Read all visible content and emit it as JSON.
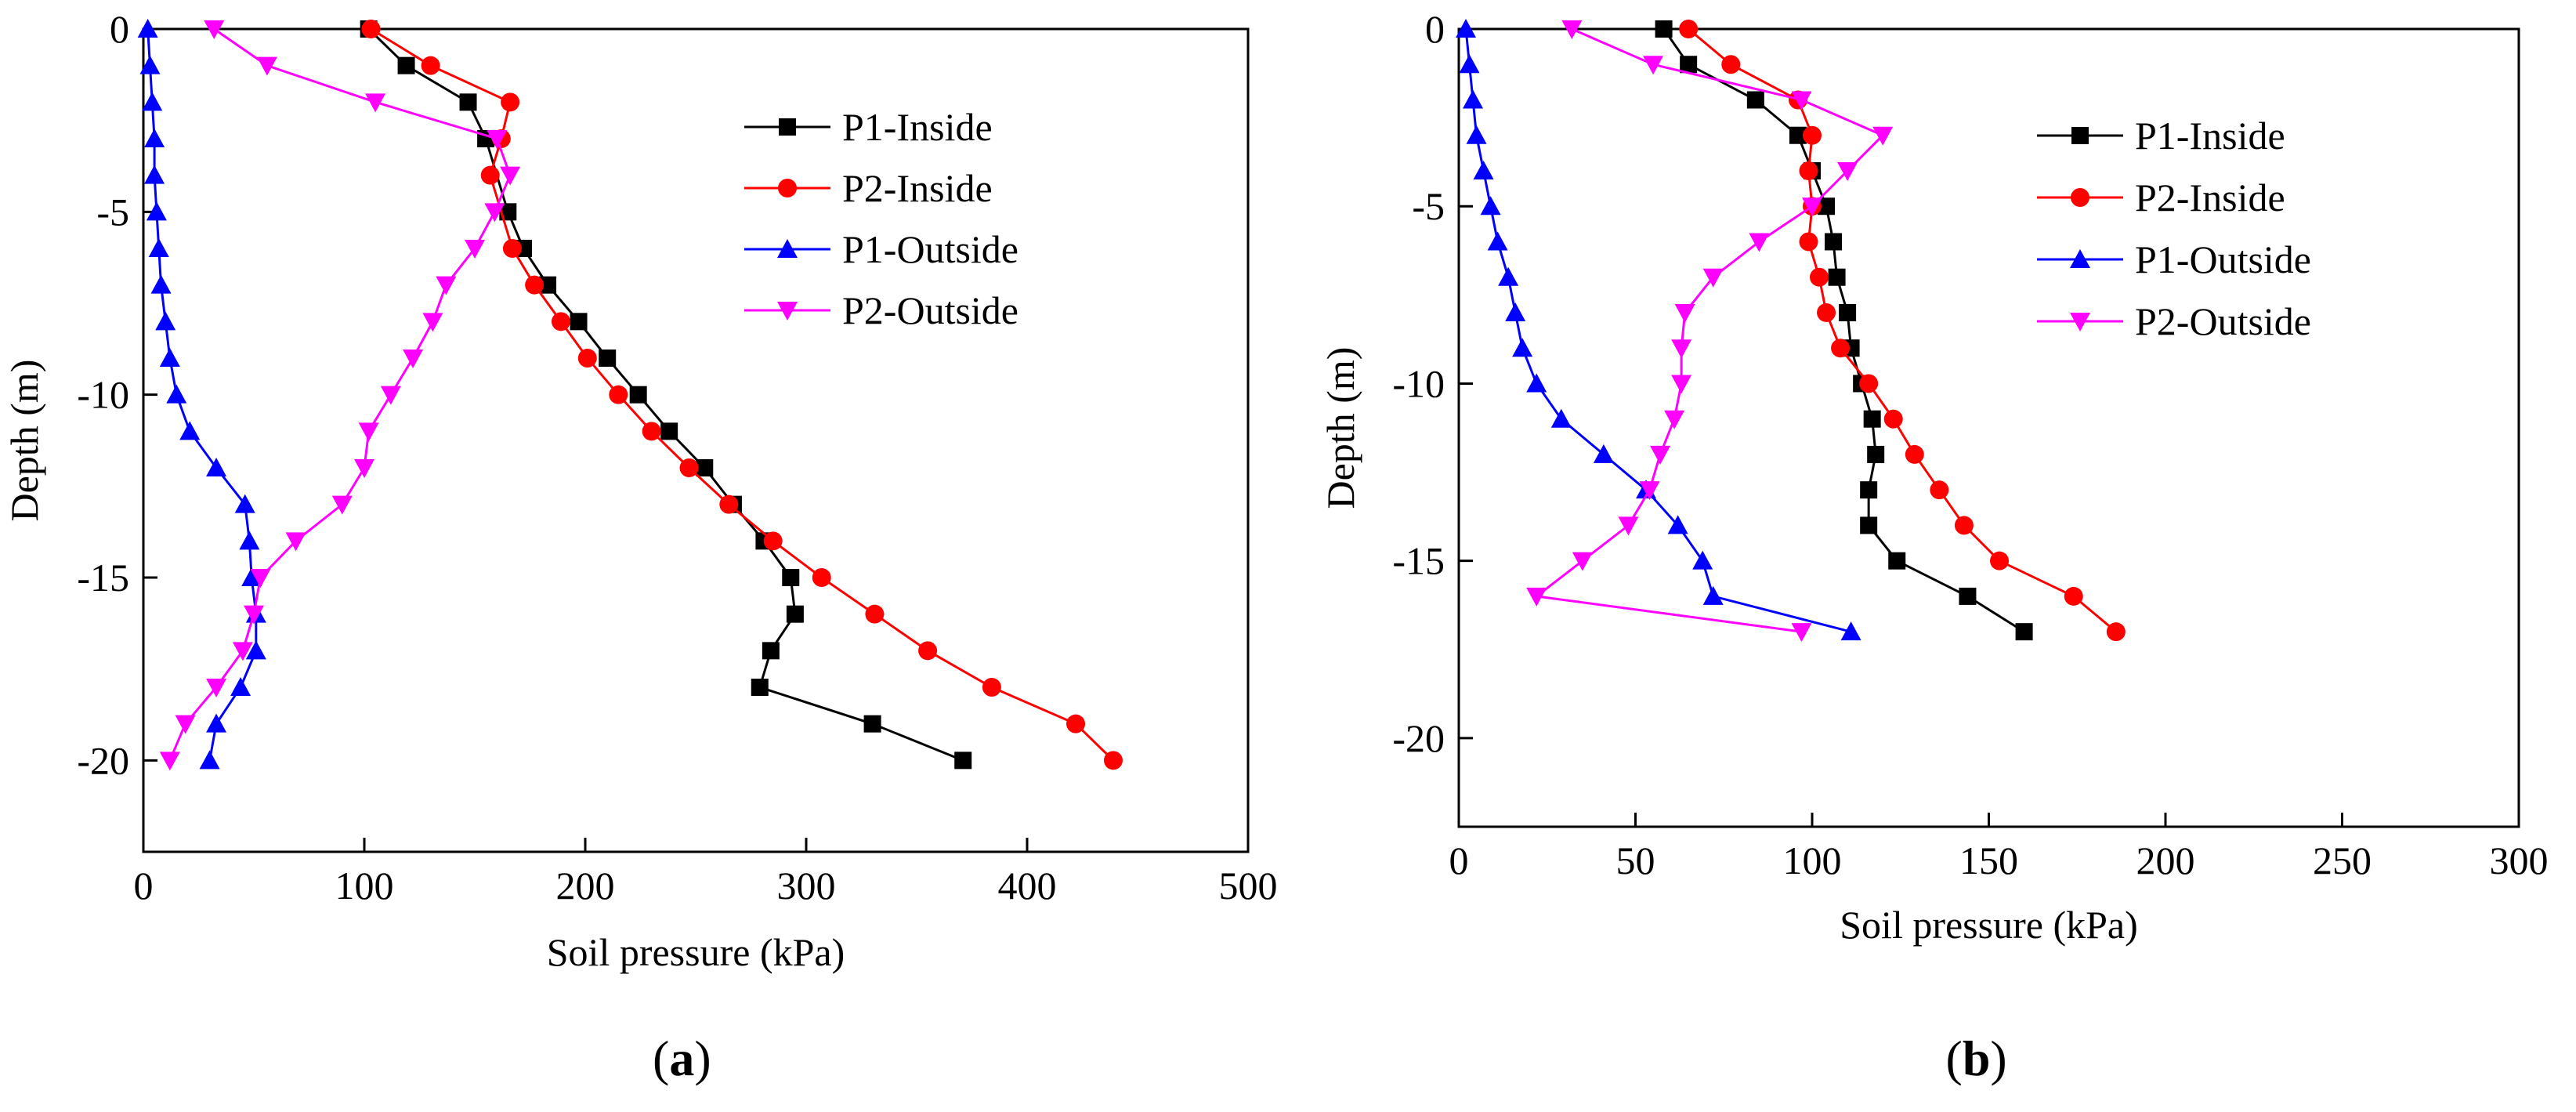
{
  "chart_data": [
    {
      "panel": "(a)",
      "panel_letter": "a",
      "type": "line",
      "title": "",
      "xlabel": "Soil pressure (kPa)",
      "ylabel": "Depth (m)",
      "xlim": [
        0,
        500
      ],
      "ylim": [
        -22.5,
        0
      ],
      "xticks": [
        0,
        100,
        200,
        300,
        400,
        500
      ],
      "yticks": [
        0,
        -5,
        -10,
        -15,
        -20
      ],
      "legend_position": "top-right",
      "series": [
        {
          "name": "P1-Inside",
          "color": "#000000",
          "marker": "square",
          "x": [
            102,
            119,
            147,
            155,
            165,
            172,
            183,
            197,
            210,
            224,
            238,
            254,
            267,
            281,
            293,
            295,
            284,
            279,
            330,
            371
          ],
          "y": [
            0,
            -1,
            -2,
            -3,
            -5,
            -6,
            -7,
            -8,
            -9,
            -10,
            -11,
            -12,
            -13,
            -14,
            -15,
            -16,
            -17,
            -18,
            -19,
            -20
          ]
        },
        {
          "name": "P2-Inside",
          "color": "#ff0000",
          "marker": "circle",
          "x": [
            103,
            130,
            166,
            162,
            157,
            167,
            177,
            189,
            201,
            215,
            230,
            247,
            265,
            285,
            307,
            331,
            355,
            384,
            422,
            439
          ],
          "y": [
            0,
            -1,
            -2,
            -3,
            -4,
            -6,
            -7,
            -8,
            -9,
            -10,
            -11,
            -12,
            -13,
            -14,
            -15,
            -16,
            -17,
            -18,
            -19,
            -20
          ]
        },
        {
          "name": "P1-Outside",
          "color": "#0000ff",
          "marker": "triangle-up",
          "x": [
            2,
            3,
            4,
            5,
            5,
            6,
            7,
            8,
            10,
            12,
            15,
            21,
            33,
            46,
            48,
            49,
            51,
            51,
            44,
            33,
            30
          ],
          "y": [
            0,
            -1,
            -2,
            -3,
            -4,
            -5,
            -6,
            -7,
            -8,
            -9,
            -10,
            -11,
            -12,
            -13,
            -14,
            -15,
            -16,
            -17,
            -18,
            -19,
            -20
          ]
        },
        {
          "name": "P2-Outside",
          "color": "#ff00ff",
          "marker": "triangle-down",
          "x": [
            32,
            56,
            105,
            160,
            166,
            159,
            150,
            137,
            131,
            122,
            112,
            102,
            100,
            90,
            69,
            53,
            50,
            45,
            33,
            19,
            12
          ],
          "y": [
            0,
            -1,
            -2,
            -3,
            -4,
            -5,
            -6,
            -7,
            -8,
            -9,
            -10,
            -11,
            -12,
            -13,
            -14,
            -15,
            -16,
            -17,
            -18,
            -19,
            -20
          ]
        }
      ]
    },
    {
      "panel": "(b)",
      "panel_letter": "b",
      "type": "line",
      "title": "",
      "xlabel": "Soil pressure (kPa)",
      "ylabel": "Depth (m)",
      "xlim": [
        0,
        300
      ],
      "ylim": [
        -22.5,
        0
      ],
      "xticks": [
        0,
        50,
        100,
        150,
        200,
        250,
        300
      ],
      "yticks": [
        0,
        -5,
        -10,
        -15,
        -20
      ],
      "legend_position": "top-right",
      "series": [
        {
          "name": "P1-Inside",
          "color": "#000000",
          "marker": "square",
          "x": [
            58,
            65,
            84,
            96,
            100,
            104,
            106,
            107,
            110,
            111,
            114,
            117,
            118,
            116,
            116,
            124,
            144,
            160
          ],
          "y": [
            0,
            -1,
            -2,
            -3,
            -4,
            -5,
            -6,
            -7,
            -8,
            -9,
            -10,
            -11,
            -12,
            -13,
            -14,
            -15,
            -16,
            -17
          ]
        },
        {
          "name": "P2-Inside",
          "color": "#ff0000",
          "marker": "circle",
          "x": [
            65,
            77,
            96,
            100,
            99,
            100,
            99,
            102,
            104,
            108,
            116,
            123,
            129,
            136,
            143,
            153,
            174,
            186
          ],
          "y": [
            0,
            -1,
            -2,
            -3,
            -4,
            -5,
            -6,
            -7,
            -8,
            -9,
            -10,
            -11,
            -12,
            -13,
            -14,
            -15,
            -16,
            -17
          ]
        },
        {
          "name": "P1-Outside",
          "color": "#0000ff",
          "marker": "triangle-up",
          "x": [
            2,
            3,
            4,
            5,
            7,
            9,
            11,
            14,
            16,
            18,
            22,
            29,
            41,
            53,
            62,
            69,
            72,
            111
          ],
          "y": [
            0,
            -1,
            -2,
            -3,
            -4,
            -5,
            -6,
            -7,
            -8,
            -9,
            -10,
            -11,
            -12,
            -13,
            -14,
            -15,
            -16,
            -17
          ]
        },
        {
          "name": "P2-Outside",
          "color": "#ff00ff",
          "marker": "triangle-down",
          "x": [
            32,
            55,
            97,
            120,
            110,
            100,
            85,
            72,
            64,
            63,
            63,
            61,
            57,
            54,
            48,
            35,
            22,
            97
          ],
          "y": [
            0,
            -1,
            -2,
            -3,
            -4,
            -5,
            -6,
            -7,
            -8,
            -9,
            -10,
            -11,
            -12,
            -13,
            -14,
            -15,
            -16,
            -17
          ]
        }
      ]
    }
  ]
}
